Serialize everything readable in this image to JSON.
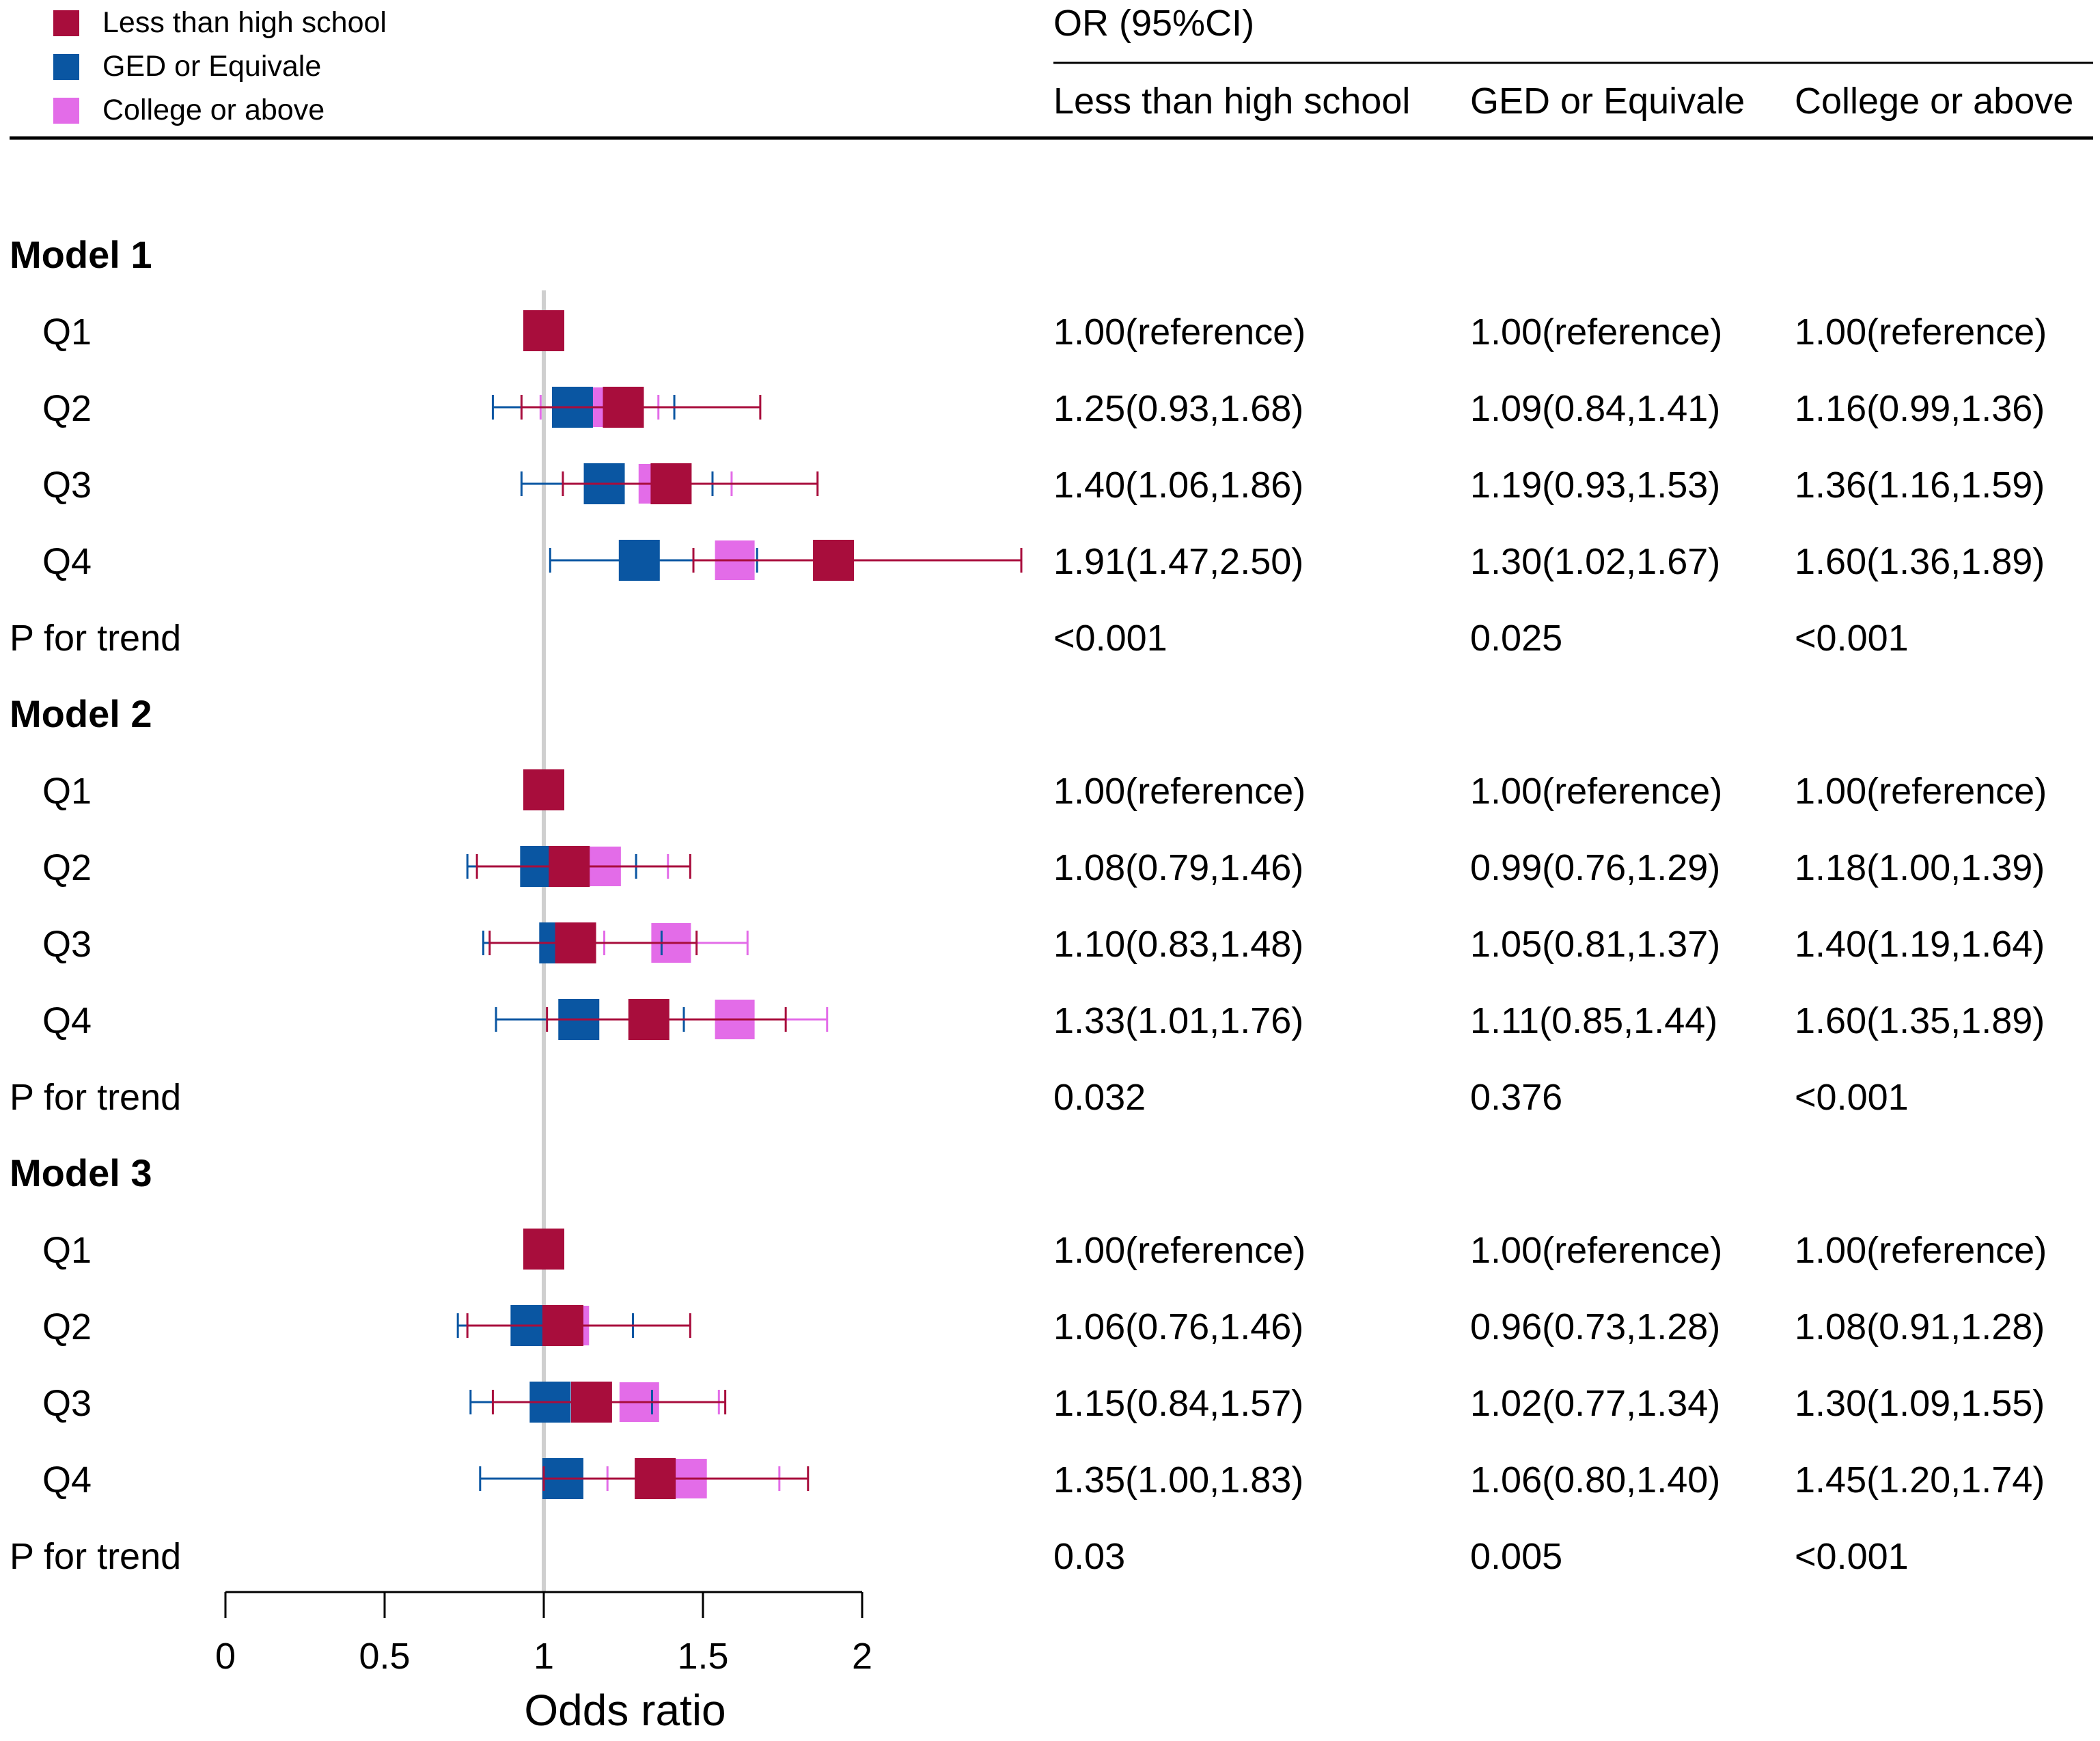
{
  "chart_data": {
    "type": "forest",
    "header": {
      "or_title": "OR (95%CI)",
      "columns": [
        "Less than high school",
        "GED or Equivale",
        "College or above"
      ]
    },
    "legend": [
      {
        "label": "Less than high school",
        "color": "#a80d3c"
      },
      {
        "label": "GED or Equivale",
        "color": "#0a56a2"
      },
      {
        "label": "College or above",
        "color": "#e36ce8"
      }
    ],
    "x_axis": {
      "label": "Odds ratio",
      "ticks": [
        "0",
        "0.5",
        "1",
        "1.5",
        "2"
      ],
      "range": [
        0,
        2
      ],
      "reference_line": 1
    },
    "models": [
      {
        "title": "Model 1",
        "rows": [
          {
            "label": "Q1",
            "text": [
              "1.00(reference)",
              "1.00(reference)",
              "1.00(reference)"
            ],
            "est": [
              [
                1.0,
                1.0,
                1.0
              ],
              [
                1.0,
                1.0,
                1.0
              ],
              [
                1.0,
                1.0,
                1.0
              ]
            ]
          },
          {
            "label": "Q2",
            "text": [
              "1.25(0.93,1.68)",
              "1.09(0.84,1.41)",
              "1.16(0.99,1.36)"
            ],
            "est": [
              [
                1.25,
                0.93,
                1.68
              ],
              [
                1.09,
                0.84,
                1.41
              ],
              [
                1.16,
                0.99,
                1.36
              ]
            ]
          },
          {
            "label": "Q3",
            "text": [
              "1.40(1.06,1.86)",
              "1.19(0.93,1.53)",
              "1.36(1.16,1.59)"
            ],
            "est": [
              [
                1.4,
                1.06,
                1.86
              ],
              [
                1.19,
                0.93,
                1.53
              ],
              [
                1.36,
                1.16,
                1.59
              ]
            ]
          },
          {
            "label": "Q4",
            "text": [
              "1.91(1.47,2.50)",
              "1.30(1.02,1.67)",
              "1.60(1.36,1.89)"
            ],
            "est": [
              [
                1.91,
                1.47,
                2.5
              ],
              [
                1.3,
                1.02,
                1.67
              ],
              [
                1.6,
                1.36,
                1.89
              ]
            ]
          }
        ],
        "trend_label": "P for trend",
        "trend": [
          "<0.001",
          "0.025",
          "<0.001"
        ]
      },
      {
        "title": "Model 2",
        "rows": [
          {
            "label": "Q1",
            "text": [
              "1.00(reference)",
              "1.00(reference)",
              "1.00(reference)"
            ],
            "est": [
              [
                1.0,
                1.0,
                1.0
              ],
              [
                1.0,
                1.0,
                1.0
              ],
              [
                1.0,
                1.0,
                1.0
              ]
            ]
          },
          {
            "label": "Q2",
            "text": [
              "1.08(0.79,1.46)",
              "0.99(0.76,1.29)",
              "1.18(1.00,1.39)"
            ],
            "est": [
              [
                1.08,
                0.79,
                1.46
              ],
              [
                0.99,
                0.76,
                1.29
              ],
              [
                1.18,
                1.0,
                1.39
              ]
            ]
          },
          {
            "label": "Q3",
            "text": [
              "1.10(0.83,1.48)",
              "1.05(0.81,1.37)",
              "1.40(1.19,1.64)"
            ],
            "est": [
              [
                1.1,
                0.83,
                1.48
              ],
              [
                1.05,
                0.81,
                1.37
              ],
              [
                1.4,
                1.19,
                1.64
              ]
            ]
          },
          {
            "label": "Q4",
            "text": [
              "1.33(1.01,1.76)",
              "1.11(0.85,1.44)",
              "1.60(1.35,1.89)"
            ],
            "est": [
              [
                1.33,
                1.01,
                1.76
              ],
              [
                1.11,
                0.85,
                1.44
              ],
              [
                1.6,
                1.35,
                1.89
              ]
            ]
          }
        ],
        "trend_label": "P for trend",
        "trend": [
          "0.032",
          "0.376",
          "<0.001"
        ]
      },
      {
        "title": "Model 3",
        "rows": [
          {
            "label": "Q1",
            "text": [
              "1.00(reference)",
              "1.00(reference)",
              "1.00(reference)"
            ],
            "est": [
              [
                1.0,
                1.0,
                1.0
              ],
              [
                1.0,
                1.0,
                1.0
              ],
              [
                1.0,
                1.0,
                1.0
              ]
            ]
          },
          {
            "label": "Q2",
            "text": [
              "1.06(0.76,1.46)",
              "0.96(0.73,1.28)",
              "1.08(0.91,1.28)"
            ],
            "est": [
              [
                1.06,
                0.76,
                1.46
              ],
              [
                0.96,
                0.73,
                1.28
              ],
              [
                1.08,
                0.91,
                1.28
              ]
            ]
          },
          {
            "label": "Q3",
            "text": [
              "1.15(0.84,1.57)",
              "1.02(0.77,1.34)",
              "1.30(1.09,1.55)"
            ],
            "est": [
              [
                1.15,
                0.84,
                1.57
              ],
              [
                1.02,
                0.77,
                1.34
              ],
              [
                1.3,
                1.09,
                1.55
              ]
            ]
          },
          {
            "label": "Q4",
            "text": [
              "1.35(1.00,1.83)",
              "1.06(0.80,1.40)",
              "1.45(1.20,1.74)"
            ],
            "est": [
              [
                1.35,
                1.0,
                1.83
              ],
              [
                1.06,
                0.8,
                1.4
              ],
              [
                1.45,
                1.2,
                1.74
              ]
            ]
          }
        ],
        "trend_label": "P for trend",
        "trend": [
          "0.03",
          "0.005",
          "<0.001"
        ]
      }
    ]
  }
}
